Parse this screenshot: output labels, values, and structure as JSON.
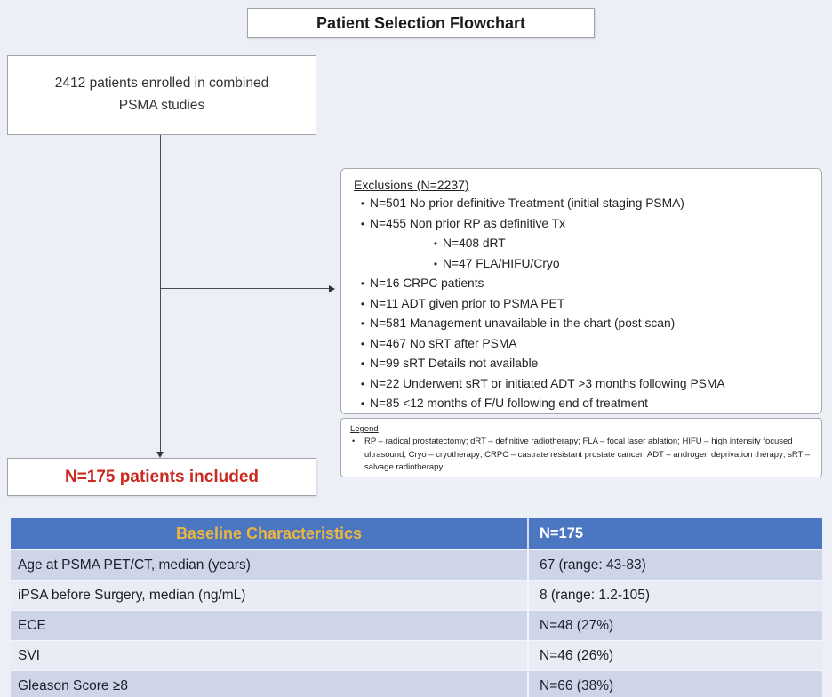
{
  "title": "Patient Selection Flowchart",
  "flow": {
    "enrolled_box": {
      "line1": "2412 patients enrolled in combined",
      "line2": "PSMA studies"
    },
    "included_box": "N=175 patients included",
    "exclusions": {
      "heading": "Exclusions (N=2237)",
      "items": [
        {
          "text": "N=501 No prior definitive Treatment (initial staging PSMA)",
          "level": 1
        },
        {
          "text": "N=455 Non prior RP as definitive Tx",
          "level": 1
        },
        {
          "text": "N=408 dRT",
          "level": 2
        },
        {
          "text": "N=47 FLA/HIFU/Cryo",
          "level": 2
        },
        {
          "text": "N=16 CRPC patients",
          "level": 1
        },
        {
          "text": "N=11 ADT given prior to PSMA PET",
          "level": 1
        },
        {
          "text": "N=581 Management unavailable in the chart (post scan)",
          "level": 1
        },
        {
          "text": "N=467 No sRT after PSMA",
          "level": 1
        },
        {
          "text": "N=99 sRT Details not available",
          "level": 1
        },
        {
          "text": "N=22 Underwent sRT or initiated ADT >3 months following PSMA",
          "level": 1
        },
        {
          "text": "N=85 <12 months of F/U following end of treatment",
          "level": 1
        }
      ]
    },
    "legend": {
      "heading": "Legend",
      "text": "RP – radical prostatectomy; dRT – definitive radiotherapy; FLA – focal laser ablation; HIFU – high intensity focused ultrasound; Cryo – cryotherapy; CRPC – castrate resistant prostate cancer; ADT – androgen deprivation therapy; sRT – salvage radiotherapy."
    }
  },
  "table": {
    "header": {
      "col1": "Baseline Characteristics",
      "col2": "N=175"
    },
    "rows": [
      {
        "label": "Age at PSMA PET/CT, median (years)",
        "value": "67 (range: 43-83)"
      },
      {
        "label": "iPSA before Surgery, median (ng/mL)",
        "value": "8 (range: 1.2-105)"
      },
      {
        "label": "ECE",
        "value": "N=48 (27%)"
      },
      {
        "label": "SVI",
        "value": "N=46 (26%)"
      },
      {
        "label": "Gleason Score ≥8",
        "value": "N=66 (38%)"
      }
    ]
  },
  "colors": {
    "page_bg": "#edeff6",
    "table_header_bg": "#4a76c2",
    "table_header_gold": "#ecb541",
    "table_row_odd": "#cfd5e9",
    "table_row_even": "#e9ecf5",
    "included_red": "#cb2a20"
  }
}
